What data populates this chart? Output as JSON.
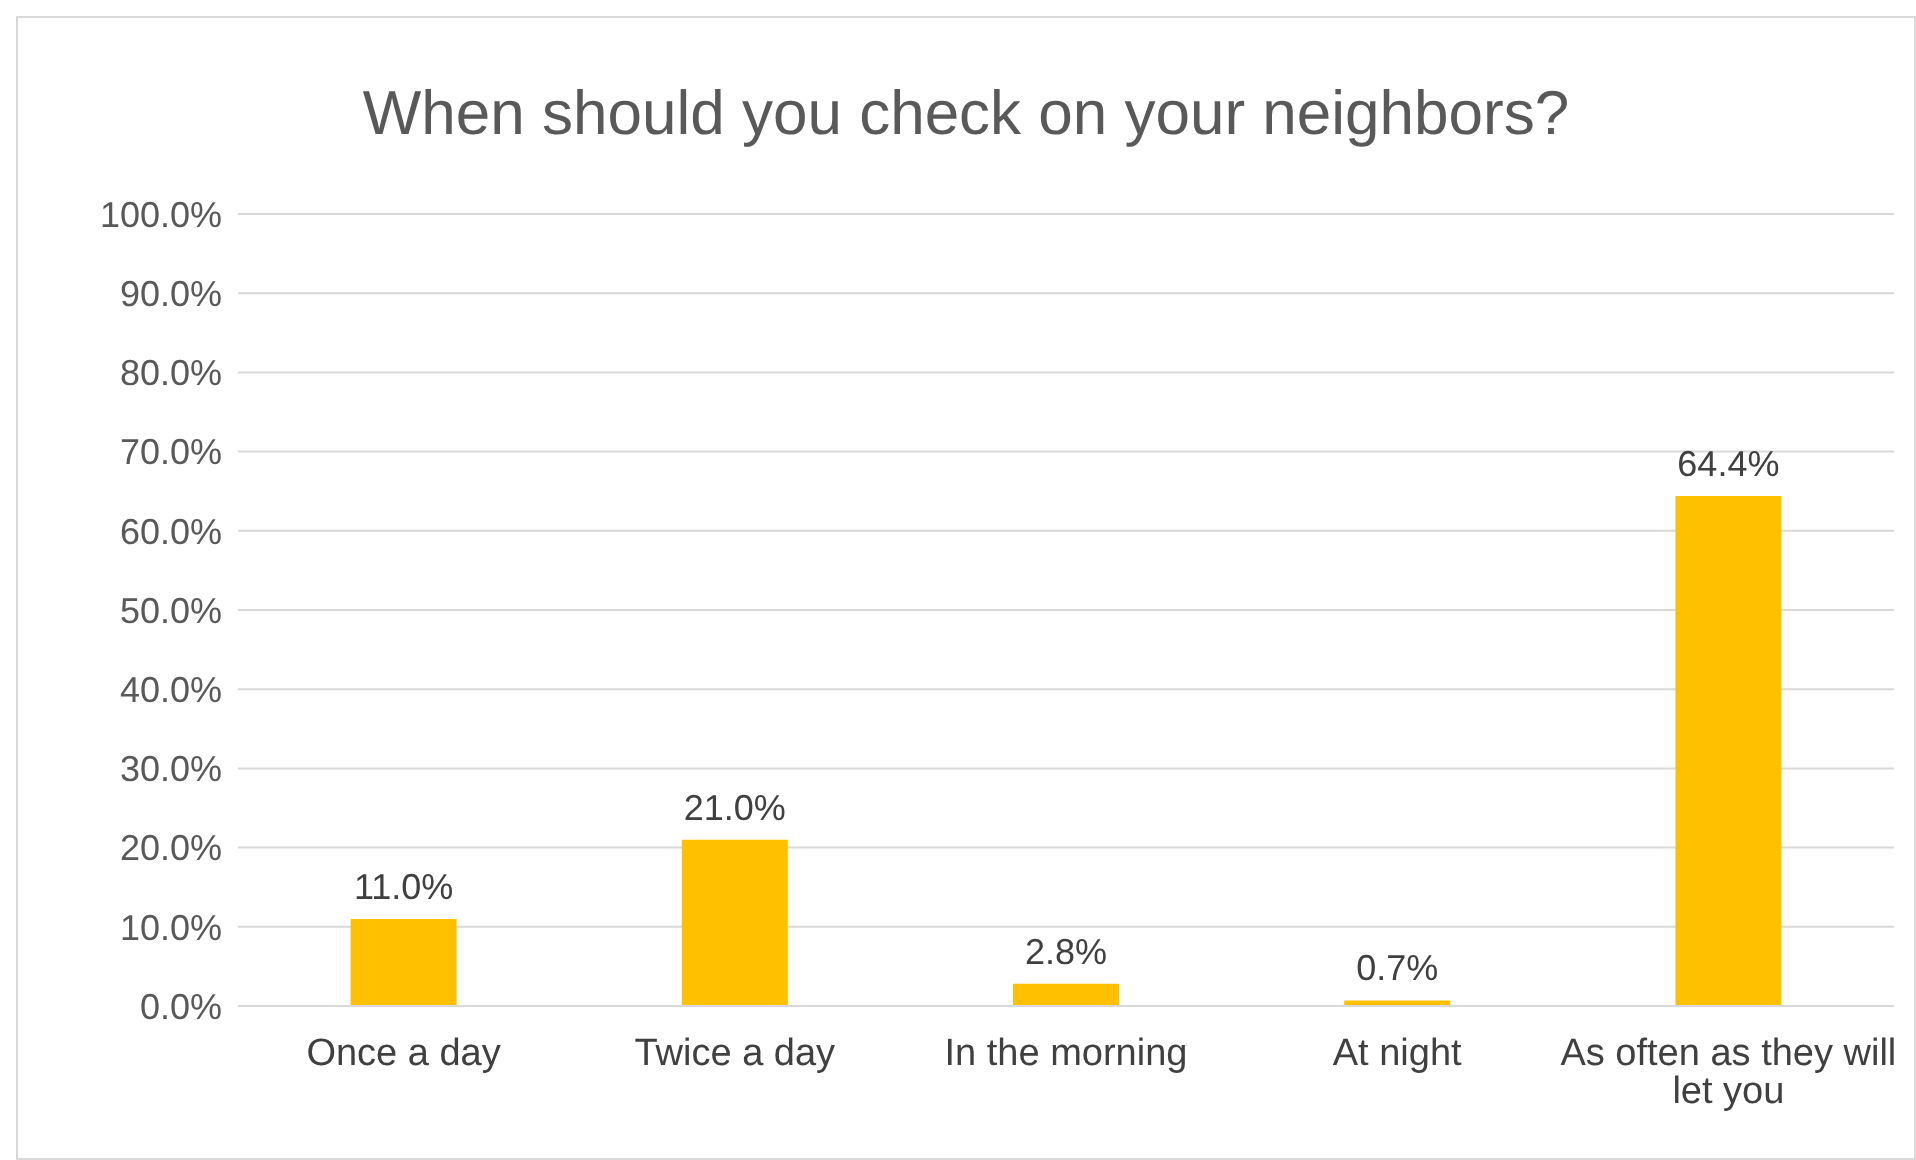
{
  "chart_data": {
    "type": "bar",
    "title": "When should you check on your neighbors?",
    "categories": [
      "Once a day",
      "Twice a day",
      "In the morning",
      "At night",
      "As often as they will let you"
    ],
    "values": [
      11.0,
      21.0,
      2.8,
      0.7,
      64.4
    ],
    "value_labels": [
      "11.0%",
      "21.0%",
      "2.8%",
      "0.7%",
      "64.4%"
    ],
    "color": "#ffc000",
    "ylim": [
      0,
      100
    ],
    "yticks": [
      {
        "value": 0,
        "label": "0.0%"
      },
      {
        "value": 10,
        "label": "10.0%"
      },
      {
        "value": 20,
        "label": "20.0%"
      },
      {
        "value": 30,
        "label": "30.0%"
      },
      {
        "value": 40,
        "label": "40.0%"
      },
      {
        "value": 50,
        "label": "50.0%"
      },
      {
        "value": 60,
        "label": "60.0%"
      },
      {
        "value": 70,
        "label": "70.0%"
      },
      {
        "value": 80,
        "label": "80.0%"
      },
      {
        "value": 90,
        "label": "90.0%"
      },
      {
        "value": 100,
        "label": "100.0%"
      }
    ],
    "grid": "y",
    "legend": false
  }
}
